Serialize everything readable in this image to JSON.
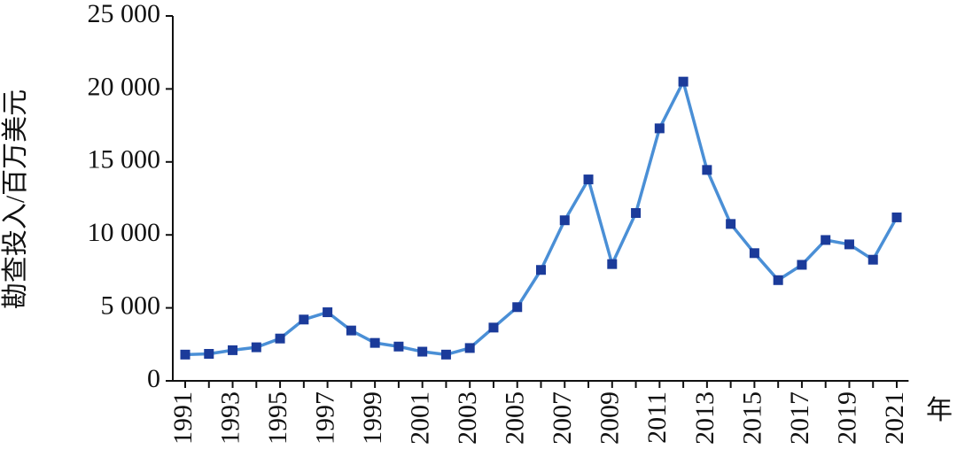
{
  "chart_data": {
    "type": "line",
    "y_label": "勘查投入/百万美元",
    "x_label": "年",
    "categories": [
      "1991",
      null,
      "1993",
      null,
      "1995",
      null,
      "1997",
      null,
      "1999",
      null,
      "2001",
      null,
      "2003",
      null,
      "2005",
      null,
      "2007",
      null,
      "2009",
      null,
      "2011",
      null,
      "2013",
      null,
      "2015",
      null,
      "2017",
      null,
      "2019",
      null,
      "2021"
    ],
    "series": [
      {
        "color": "#4a8fd6",
        "marker_color": "#1b3b9a",
        "values": [
          1800,
          1850,
          2100,
          2300,
          2900,
          4200,
          4700,
          3450,
          2600,
          2350,
          2000,
          1800,
          2250,
          3650,
          5050,
          7600,
          11000,
          13800,
          8000,
          11500,
          17300,
          20500,
          14450,
          10750,
          8750,
          6900,
          7950,
          9650,
          9350,
          8300,
          11200
        ]
      }
    ],
    "ylim": [
      0,
      25000
    ],
    "yticks": [
      0,
      {
        "value": 5000,
        "label": "5 000"
      },
      {
        "value": 10000,
        "label": "10 000"
      },
      {
        "value": 15000,
        "label": "15 000"
      },
      {
        "value": 20000,
        "label": "20 000"
      },
      {
        "value": 25000,
        "label": "25 000"
      }
    ],
    "grid": false
  }
}
